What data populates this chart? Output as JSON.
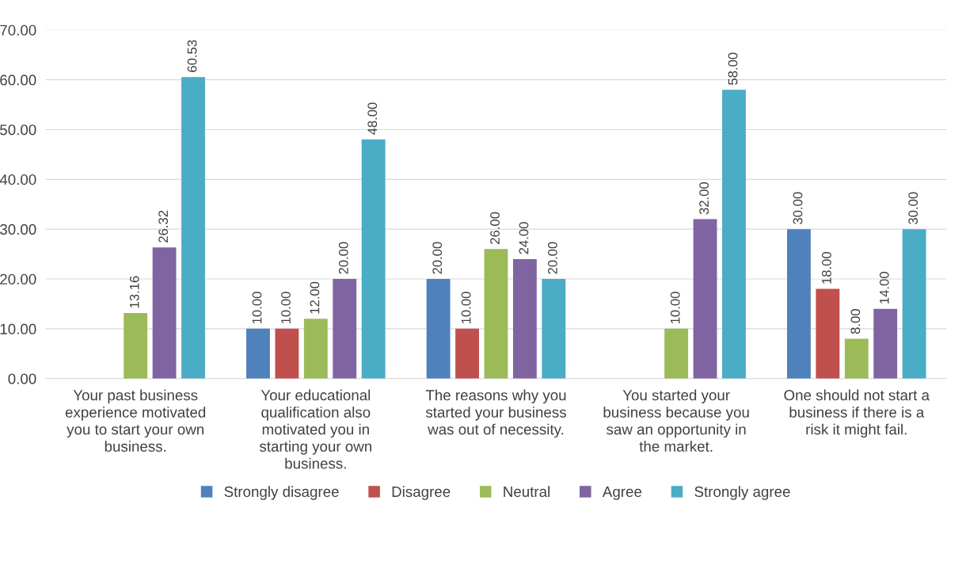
{
  "chart_data": {
    "type": "bar",
    "categories": [
      "Your past business experience motivated you to start your own business.",
      "Your educational qualification also motivated you in starting your own business.",
      "The reasons why you started your business was out of necessity.",
      "You started your business because you saw an opportunity in the market.",
      "One should not start a business if there is a risk it might fail."
    ],
    "series": [
      {
        "name": "Strongly disagree",
        "color": "#4f81bd",
        "values": [
          null,
          10,
          20,
          null,
          30
        ],
        "value_labels": [
          null,
          "10.00",
          "20.00",
          null,
          "30.00"
        ]
      },
      {
        "name": "Disagree",
        "color": "#c0504d",
        "values": [
          null,
          10,
          10,
          null,
          18
        ],
        "value_labels": [
          null,
          "10.00",
          "10.00",
          null,
          "18.00"
        ]
      },
      {
        "name": "Neutral",
        "color": "#9bbb59",
        "values": [
          13.16,
          12,
          26,
          10,
          8
        ],
        "value_labels": [
          "13.16",
          "12.00",
          "26.00",
          "10.00",
          "8.00"
        ]
      },
      {
        "name": "Agree",
        "color": "#8064a2",
        "values": [
          26.32,
          20,
          24,
          32,
          14
        ],
        "value_labels": [
          "26.32",
          "20.00",
          "24.00",
          "32.00",
          "14.00"
        ]
      },
      {
        "name": "Strongly agree",
        "color": "#4bacc6",
        "values": [
          60.53,
          48,
          20,
          58,
          30
        ],
        "value_labels": [
          "60.53",
          "48.00",
          "20.00",
          "58.00",
          "30.00"
        ]
      }
    ],
    "ylim": [
      0,
      70
    ],
    "yticks": [
      {
        "value": 0,
        "label": "0.00"
      },
      {
        "value": 10,
        "label": "10.00"
      },
      {
        "value": 20,
        "label": "20.00"
      },
      {
        "value": 30,
        "label": "30.00"
      },
      {
        "value": 40,
        "label": "40.00"
      },
      {
        "value": 50,
        "label": "50.00"
      },
      {
        "value": 60,
        "label": "60.00"
      },
      {
        "value": 70,
        "label": "70.00"
      }
    ],
    "grid": "y",
    "legend": "bottom"
  }
}
